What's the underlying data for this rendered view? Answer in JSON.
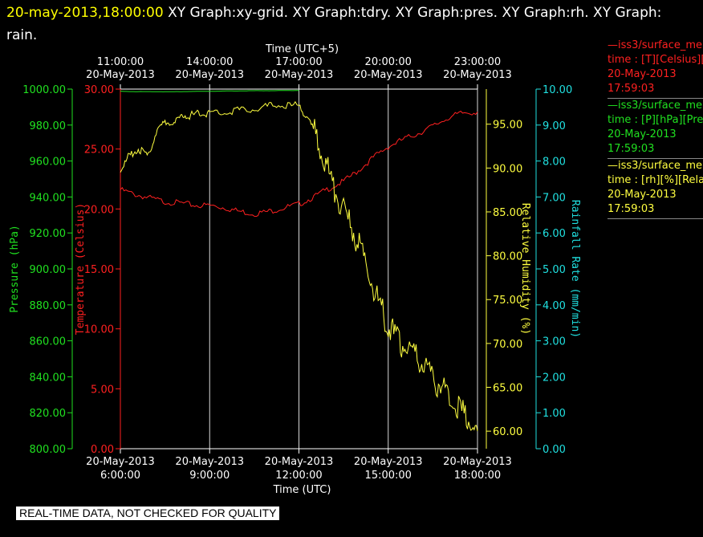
{
  "header": {
    "timestamp": "20-may-2013,18:00:00",
    "graphs": "XY Graph:xy-grid.  XY Graph:tdry.  XY Graph:pres.  XY Graph:rh.  XY Graph: rain."
  },
  "legend": [
    {
      "series": "iss3/surface_me",
      "desc": "time : [T][Celsius][T",
      "date": "20-May-2013",
      "time": "17:59:03",
      "color": "#ff2020"
    },
    {
      "series": "iss3/surface_me",
      "desc": "time : [P][hPa][Pres",
      "date": "20-May-2013",
      "time": "17:59:03",
      "color": "#20e020"
    },
    {
      "series": "iss3/surface_me",
      "desc": "time : [rh][%][Relati",
      "date": "20-May-2013",
      "time": "17:59:03",
      "color": "#ffff40"
    }
  ],
  "quality_note": "REAL-TIME DATA, NOT CHECKED FOR QUALITY",
  "chart_data": {
    "type": "line",
    "xlabel_bottom": "Time (UTC)",
    "xlabel_top": "Time (UTC+5)",
    "x_ticks_bottom": [
      {
        "hour": 6,
        "date": "20-May-2013",
        "time": "6:00:00"
      },
      {
        "hour": 9,
        "date": "20-May-2013",
        "time": "9:00:00"
      },
      {
        "hour": 12,
        "date": "20-May-2013",
        "time": "12:00:00"
      },
      {
        "hour": 15,
        "date": "20-May-2013",
        "time": "15:00:00"
      },
      {
        "hour": 18,
        "date": "20-May-2013",
        "time": "18:00:00"
      }
    ],
    "x_ticks_top": [
      {
        "hour": 6,
        "date": "20-May-2013",
        "time": "11:00:00"
      },
      {
        "hour": 9,
        "date": "20-May-2013",
        "time": "14:00:00"
      },
      {
        "hour": 12,
        "date": "20-May-2013",
        "time": "17:00:00"
      },
      {
        "hour": 15,
        "date": "20-May-2013",
        "time": "20:00:00"
      },
      {
        "hour": 18,
        "date": "20-May-2013",
        "time": "23:00:00"
      }
    ],
    "xlim": [
      6,
      18
    ],
    "axes": {
      "pressure": {
        "label": "Pressure (hPa)",
        "color": "#20e020",
        "ylim": [
          800,
          1000
        ],
        "ticks": [
          "800.00",
          "820.00",
          "840.00",
          "860.00",
          "880.00",
          "900.00",
          "920.00",
          "940.00",
          "960.00",
          "980.00",
          "1000.00"
        ]
      },
      "temperature": {
        "label": "Temperature (Celsius)",
        "color": "#ff2020",
        "ylim": [
          0,
          30
        ],
        "ticks": [
          "0.00",
          "5.00",
          "10.00",
          "15.00",
          "20.00",
          "25.00",
          "30.00"
        ]
      },
      "rh": {
        "label": "Relative Humidity (%)",
        "color": "#ffff40",
        "ylim": [
          58,
          99
        ],
        "ticks": [
          "60.00",
          "65.00",
          "70.00",
          "75.00",
          "80.00",
          "85.00",
          "90.00",
          "95.00"
        ]
      },
      "rain": {
        "label": "Rainfall Rate (mm/min)",
        "color": "#20e0e0",
        "ylim": [
          0,
          10
        ],
        "ticks": [
          "0.00",
          "1.00",
          "2.00",
          "3.00",
          "4.00",
          "5.00",
          "6.00",
          "7.00",
          "8.00",
          "9.00",
          "10.00"
        ]
      }
    },
    "series": [
      {
        "name": "iss3/surface_me [T][Celsius]",
        "axis": "temperature",
        "color": "#ff2020",
        "x": [
          6.0,
          6.5,
          7.0,
          7.5,
          8.0,
          8.5,
          9.0,
          9.5,
          10.0,
          10.5,
          11.0,
          11.5,
          12.0,
          12.5,
          13.0,
          13.5,
          14.0,
          14.5,
          15.0,
          15.5,
          16.0,
          16.5,
          17.0,
          17.5,
          18.0
        ],
        "y": [
          21.6,
          21.2,
          20.9,
          20.6,
          20.5,
          20.3,
          20.3,
          20.1,
          19.8,
          19.6,
          19.8,
          20.1,
          20.4,
          21.0,
          21.7,
          22.3,
          23.2,
          24.3,
          25.2,
          25.8,
          26.3,
          26.9,
          27.6,
          28.0,
          28.1
        ]
      },
      {
        "name": "iss3/surface_me [P][hPa]",
        "axis": "pressure",
        "color": "#20e020",
        "x": [
          6.0,
          6.5,
          7.0,
          7.5,
          8.0,
          8.5,
          9.0,
          9.5,
          10.0,
          10.5,
          11.0,
          11.5,
          12.0
        ],
        "y": [
          998.8,
          998.6,
          998.6,
          998.5,
          998.6,
          998.7,
          998.8,
          998.9,
          999.0,
          999.1,
          999.1,
          999.2,
          999.2
        ]
      },
      {
        "name": "iss3/surface_me [rh][%]",
        "axis": "rh",
        "color": "#ffff40",
        "x": [
          6.0,
          6.3,
          6.6,
          6.9,
          7.2,
          7.5,
          7.8,
          8.1,
          8.4,
          8.7,
          9.0,
          9.5,
          10.0,
          10.5,
          11.0,
          11.5,
          12.0,
          12.3,
          12.6,
          12.9,
          13.2,
          13.5,
          13.8,
          14.1,
          14.4,
          14.7,
          15.0,
          15.3,
          15.6,
          15.9,
          16.2,
          16.5,
          16.8,
          17.1,
          17.4,
          17.7,
          18.0
        ],
        "y": [
          89.6,
          91.4,
          92.2,
          91.3,
          94.0,
          95.3,
          95.0,
          96.0,
          96.0,
          96.2,
          96.3,
          96.4,
          96.6,
          96.8,
          97.0,
          97.2,
          97.0,
          95.8,
          93.5,
          90.5,
          87.5,
          85.0,
          83.0,
          80.5,
          77.5,
          74.5,
          72.0,
          70.5,
          69.5,
          68.5,
          67.5,
          66.0,
          65.0,
          63.8,
          62.5,
          61.5,
          60.0
        ]
      }
    ]
  }
}
